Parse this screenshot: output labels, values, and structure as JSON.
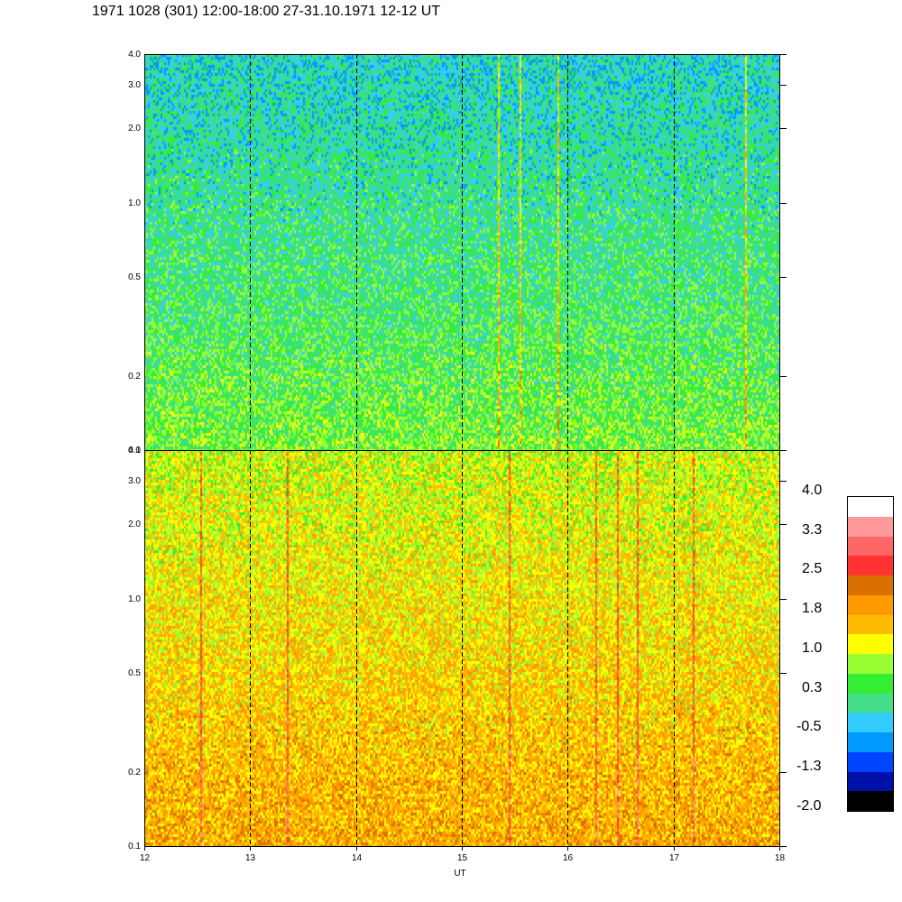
{
  "title": "1971 1028 (301) 12:00-18:00 27-31.10.1971  12-12 UT",
  "chart_data": [
    {
      "type": "heatmap",
      "panel": "top",
      "x": [
        12,
        13,
        14,
        15,
        16,
        17,
        18
      ],
      "xlim": [
        12,
        18
      ],
      "ylim": [
        0.1,
        4.0
      ],
      "yscale": "log",
      "yticks": [
        "0.1",
        "0.2",
        "0.5",
        "1.0",
        "2.0",
        "3.0",
        "4.0"
      ],
      "zrange": [
        -2.0,
        4.0
      ],
      "typical_level_low_freq": 0.6,
      "typical_level_high_freq": -0.2,
      "vertical_dashed_lines_at": [
        13,
        14,
        15,
        16,
        17
      ]
    },
    {
      "type": "heatmap",
      "panel": "bottom",
      "x": [
        12,
        13,
        14,
        15,
        16,
        17,
        18
      ],
      "xlim": [
        12,
        18
      ],
      "ylim": [
        0.1,
        4.0
      ],
      "yscale": "log",
      "yticks": [
        "0.1",
        "0.2",
        "0.5",
        "1.0",
        "2.0",
        "3.0",
        "4.0"
      ],
      "xticks": [
        "12",
        "13",
        "14",
        "15",
        "16",
        "17",
        "18"
      ],
      "xlabel": "UT",
      "zrange": [
        -2.0,
        4.0
      ],
      "typical_level_low_freq": 1.8,
      "typical_level_high_freq": 1.0,
      "vertical_dashed_lines_at": [
        13,
        14,
        15,
        16,
        17
      ]
    }
  ],
  "colorbar": {
    "labels": [
      "4.0",
      "3.3",
      "2.5",
      "1.8",
      "1.0",
      "0.3",
      "-0.5",
      "-1.3",
      "-2.0"
    ],
    "colors": [
      "#ffffff",
      "#ff9999",
      "#ff6666",
      "#ff3333",
      "#d97000",
      "#ff9900",
      "#ffbb00",
      "#ffff00",
      "#99ff33",
      "#33ee33",
      "#44dd88",
      "#33ccff",
      "#0099ff",
      "#0044ff",
      "#0011aa",
      "#000000"
    ]
  }
}
